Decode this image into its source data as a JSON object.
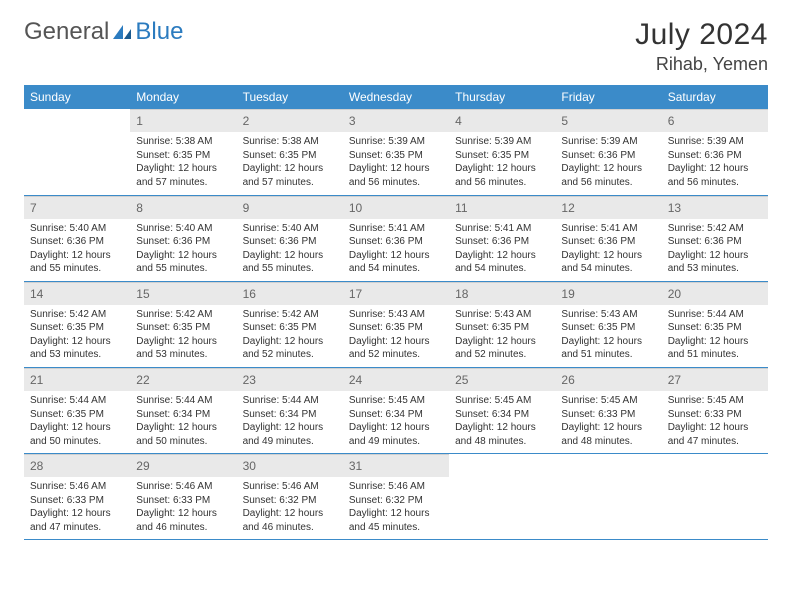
{
  "logo": {
    "text1": "General",
    "text2": "Blue"
  },
  "title": "July 2024",
  "location": "Rihab, Yemen",
  "colors": {
    "header_bg": "#3b8bc9",
    "header_text": "#ffffff",
    "daynum_bg": "#e9e9e9",
    "daynum_text": "#666666",
    "cell_border": "#3b8bc9",
    "body_text": "#333333",
    "logo_blue": "#2b7bbf",
    "logo_gray": "#555555"
  },
  "weekdays": [
    "Sunday",
    "Monday",
    "Tuesday",
    "Wednesday",
    "Thursday",
    "Friday",
    "Saturday"
  ],
  "weeks": [
    [
      null,
      {
        "n": "1",
        "sr": "5:38 AM",
        "ss": "6:35 PM",
        "dl": "12 hours and 57 minutes."
      },
      {
        "n": "2",
        "sr": "5:38 AM",
        "ss": "6:35 PM",
        "dl": "12 hours and 57 minutes."
      },
      {
        "n": "3",
        "sr": "5:39 AM",
        "ss": "6:35 PM",
        "dl": "12 hours and 56 minutes."
      },
      {
        "n": "4",
        "sr": "5:39 AM",
        "ss": "6:35 PM",
        "dl": "12 hours and 56 minutes."
      },
      {
        "n": "5",
        "sr": "5:39 AM",
        "ss": "6:36 PM",
        "dl": "12 hours and 56 minutes."
      },
      {
        "n": "6",
        "sr": "5:39 AM",
        "ss": "6:36 PM",
        "dl": "12 hours and 56 minutes."
      }
    ],
    [
      {
        "n": "7",
        "sr": "5:40 AM",
        "ss": "6:36 PM",
        "dl": "12 hours and 55 minutes."
      },
      {
        "n": "8",
        "sr": "5:40 AM",
        "ss": "6:36 PM",
        "dl": "12 hours and 55 minutes."
      },
      {
        "n": "9",
        "sr": "5:40 AM",
        "ss": "6:36 PM",
        "dl": "12 hours and 55 minutes."
      },
      {
        "n": "10",
        "sr": "5:41 AM",
        "ss": "6:36 PM",
        "dl": "12 hours and 54 minutes."
      },
      {
        "n": "11",
        "sr": "5:41 AM",
        "ss": "6:36 PM",
        "dl": "12 hours and 54 minutes."
      },
      {
        "n": "12",
        "sr": "5:41 AM",
        "ss": "6:36 PM",
        "dl": "12 hours and 54 minutes."
      },
      {
        "n": "13",
        "sr": "5:42 AM",
        "ss": "6:36 PM",
        "dl": "12 hours and 53 minutes."
      }
    ],
    [
      {
        "n": "14",
        "sr": "5:42 AM",
        "ss": "6:35 PM",
        "dl": "12 hours and 53 minutes."
      },
      {
        "n": "15",
        "sr": "5:42 AM",
        "ss": "6:35 PM",
        "dl": "12 hours and 53 minutes."
      },
      {
        "n": "16",
        "sr": "5:42 AM",
        "ss": "6:35 PM",
        "dl": "12 hours and 52 minutes."
      },
      {
        "n": "17",
        "sr": "5:43 AM",
        "ss": "6:35 PM",
        "dl": "12 hours and 52 minutes."
      },
      {
        "n": "18",
        "sr": "5:43 AM",
        "ss": "6:35 PM",
        "dl": "12 hours and 52 minutes."
      },
      {
        "n": "19",
        "sr": "5:43 AM",
        "ss": "6:35 PM",
        "dl": "12 hours and 51 minutes."
      },
      {
        "n": "20",
        "sr": "5:44 AM",
        "ss": "6:35 PM",
        "dl": "12 hours and 51 minutes."
      }
    ],
    [
      {
        "n": "21",
        "sr": "5:44 AM",
        "ss": "6:35 PM",
        "dl": "12 hours and 50 minutes."
      },
      {
        "n": "22",
        "sr": "5:44 AM",
        "ss": "6:34 PM",
        "dl": "12 hours and 50 minutes."
      },
      {
        "n": "23",
        "sr": "5:44 AM",
        "ss": "6:34 PM",
        "dl": "12 hours and 49 minutes."
      },
      {
        "n": "24",
        "sr": "5:45 AM",
        "ss": "6:34 PM",
        "dl": "12 hours and 49 minutes."
      },
      {
        "n": "25",
        "sr": "5:45 AM",
        "ss": "6:34 PM",
        "dl": "12 hours and 48 minutes."
      },
      {
        "n": "26",
        "sr": "5:45 AM",
        "ss": "6:33 PM",
        "dl": "12 hours and 48 minutes."
      },
      {
        "n": "27",
        "sr": "5:45 AM",
        "ss": "6:33 PM",
        "dl": "12 hours and 47 minutes."
      }
    ],
    [
      {
        "n": "28",
        "sr": "5:46 AM",
        "ss": "6:33 PM",
        "dl": "12 hours and 47 minutes."
      },
      {
        "n": "29",
        "sr": "5:46 AM",
        "ss": "6:33 PM",
        "dl": "12 hours and 46 minutes."
      },
      {
        "n": "30",
        "sr": "5:46 AM",
        "ss": "6:32 PM",
        "dl": "12 hours and 46 minutes."
      },
      {
        "n": "31",
        "sr": "5:46 AM",
        "ss": "6:32 PM",
        "dl": "12 hours and 45 minutes."
      },
      null,
      null,
      null
    ]
  ],
  "labels": {
    "sunrise": "Sunrise:",
    "sunset": "Sunset:",
    "daylight": "Daylight:"
  }
}
